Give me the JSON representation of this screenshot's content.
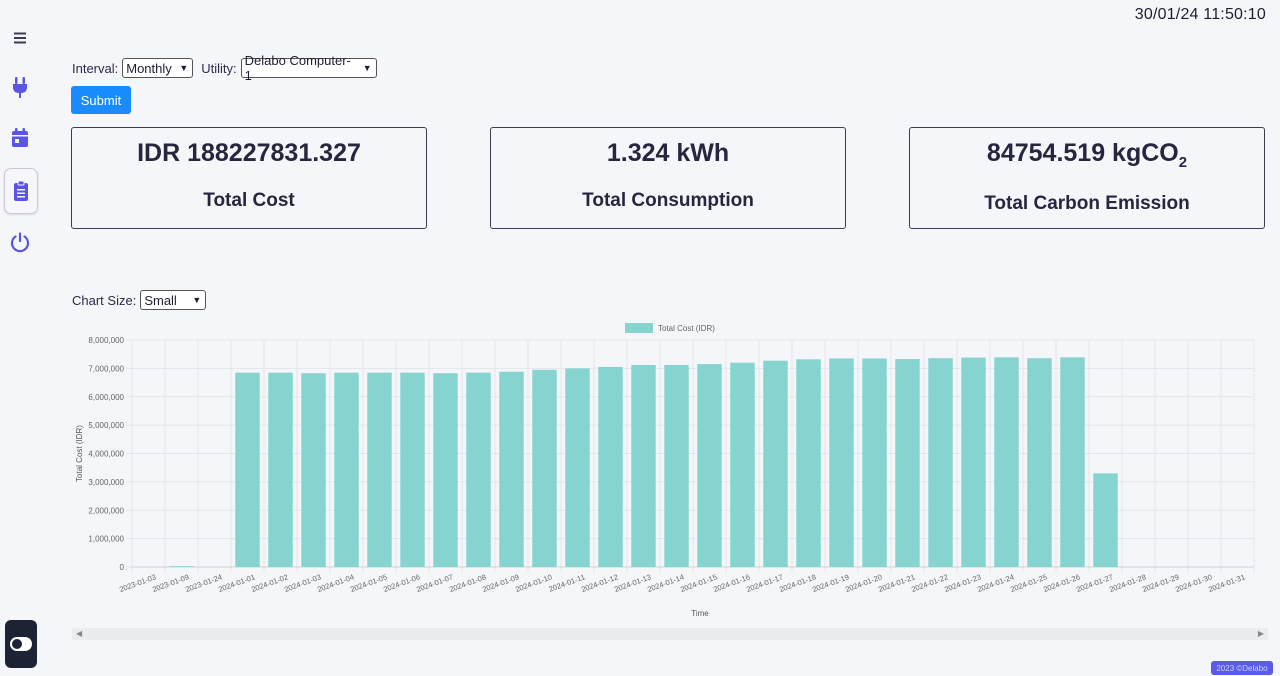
{
  "clock": "30/01/24 11:50:10",
  "sidebar": {
    "items": [
      {
        "icon": "menu-icon"
      },
      {
        "icon": "plug-icon"
      },
      {
        "icon": "calendar-icon"
      },
      {
        "icon": "clipboard-icon",
        "active": true
      },
      {
        "icon": "power-icon"
      }
    ],
    "theme_toggle_icon": "toggle-icon"
  },
  "controls": {
    "interval_label": "Interval:",
    "interval_value": "Monthly",
    "utility_label": "Utility:",
    "utility_value": "Delabo Computer-1",
    "submit_label": "Submit"
  },
  "cards": [
    {
      "value": "IDR 188227831.327",
      "label": "Total Cost"
    },
    {
      "value": "1.324 kWh",
      "label": "Total Consumption"
    },
    {
      "value_main": "84754.519 kgCO",
      "value_sub": "2",
      "label": "Total Carbon Emission"
    }
  ],
  "chart_size": {
    "label": "Chart Size:",
    "value": "Small"
  },
  "chart_data": {
    "type": "bar",
    "legend": "Total Cost (IDR)",
    "legend_position": "top-center",
    "xlabel": "Time",
    "ylabel": "Total Cost (IDR)",
    "ylim": [
      0,
      8000000
    ],
    "yticks": [
      "0",
      "1,000,000",
      "2,000,000",
      "3,000,000",
      "4,000,000",
      "5,000,000",
      "6,000,000",
      "7,000,000",
      "8,000,000"
    ],
    "grid": true,
    "color": "#86d4d0",
    "categories": [
      "2023-01-03",
      "2023-01-09",
      "2023-01-24",
      "2024-01-01",
      "2024-01-02",
      "2024-01-03",
      "2024-01-04",
      "2024-01-05",
      "2024-01-06",
      "2024-01-07",
      "2024-01-08",
      "2024-01-09",
      "2024-01-10",
      "2024-01-11",
      "2024-01-12",
      "2024-01-13",
      "2024-01-14",
      "2024-01-15",
      "2024-01-16",
      "2024-01-17",
      "2024-01-18",
      "2024-01-19",
      "2024-01-20",
      "2024-01-21",
      "2024-01-22",
      "2024-01-23",
      "2024-01-24",
      "2024-01-25",
      "2024-01-26",
      "2024-01-27",
      "2024-01-28",
      "2024-01-29",
      "2024-01-30",
      "2024-01-31"
    ],
    "values": [
      0,
      30000,
      0,
      6850000,
      6850000,
      6830000,
      6850000,
      6850000,
      6850000,
      6830000,
      6850000,
      6880000,
      6950000,
      7000000,
      7050000,
      7120000,
      7120000,
      7150000,
      7200000,
      7270000,
      7320000,
      7350000,
      7350000,
      7330000,
      7360000,
      7380000,
      7390000,
      7360000,
      7390000,
      3300000,
      0,
      0,
      0,
      0
    ]
  },
  "footer_badge": "2023 ©Delabo"
}
